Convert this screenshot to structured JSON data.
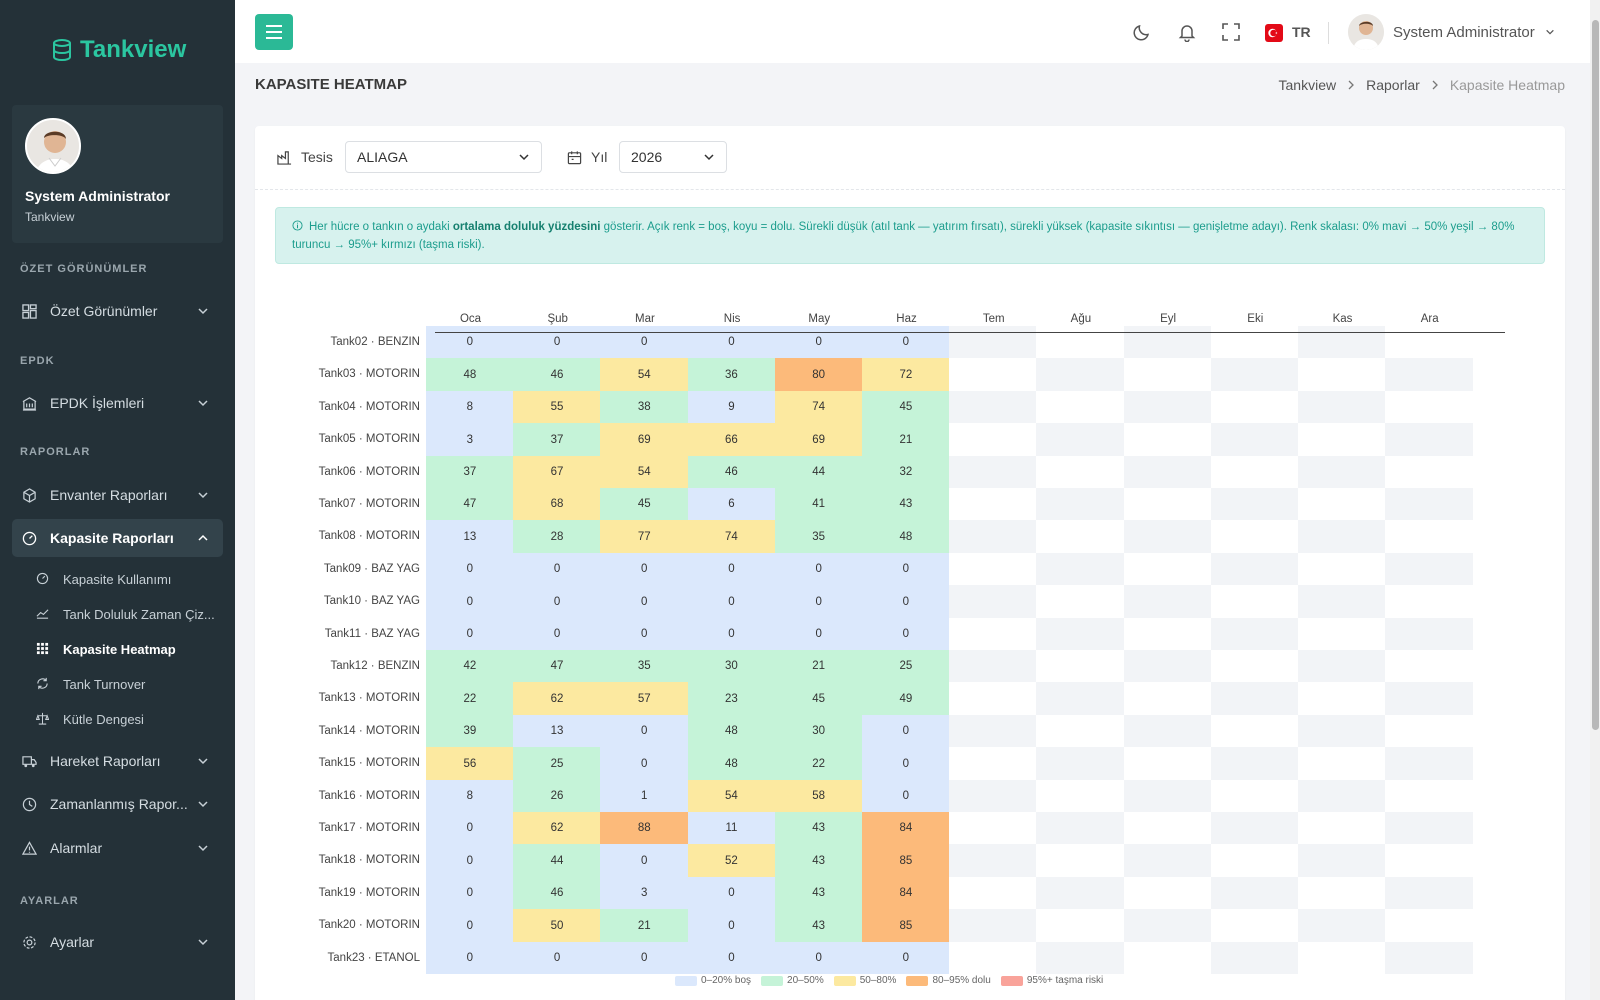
{
  "app": {
    "logo": "Tankview"
  },
  "profile": {
    "name": "System Administrator",
    "subtitle": "Tankview"
  },
  "sidebar": {
    "sections": [
      "ÖZET GÖRÜNÜMLER",
      "EPDK",
      "RAPORLAR",
      "AYARLAR"
    ],
    "items": [
      {
        "label": "Özet Görünümler",
        "icon": "grid-icon"
      },
      {
        "label": "EPDK İşlemleri",
        "icon": "building-icon"
      },
      {
        "label": "Envanter Raporları",
        "icon": "box-icon"
      },
      {
        "label": "Kapasite Raporları",
        "icon": "gauge-icon"
      },
      {
        "label": "Hareket Raporları",
        "icon": "truck-icon"
      },
      {
        "label": "Zamanlanmış Rapor...",
        "icon": "clock-icon"
      },
      {
        "label": "Alarmlar",
        "icon": "warning-icon"
      },
      {
        "label": "Ayarlar",
        "icon": "gear-icon"
      }
    ],
    "subitems": [
      {
        "label": "Kapasite Kullanımı",
        "icon": "gauge-icon"
      },
      {
        "label": "Tank Doluluk Zaman Çiz...",
        "icon": "area-chart-icon"
      },
      {
        "label": "Kapasite Heatmap",
        "icon": "dots-grid-icon"
      },
      {
        "label": "Tank Turnover",
        "icon": "refresh-icon"
      },
      {
        "label": "Kütle Dengesi",
        "icon": "scale-icon"
      }
    ]
  },
  "topbar": {
    "lang": "TR",
    "user": "System Administrator"
  },
  "page": {
    "title": "KAPASITE HEATMAP",
    "breadcrumb": [
      "Tankview",
      "Raporlar",
      "Kapasite Heatmap"
    ]
  },
  "filters": {
    "facility_label": "Tesis",
    "facility_value": "ALIAGA",
    "year_label": "Yıl",
    "year_value": "2026"
  },
  "info": {
    "prefix": "Her hücre o tankın o aydaki ",
    "bold": "ortalama doluluk yüzdesini",
    "suffix": " gösterir. Açık renk = boş, koyu = dolu. Sürekli düşük (atıl tank — yatırım fırsatı), sürekli yüksek (kapasite sıkıntısı — genişletme adayı). Renk skalası: 0% mavi → 50% yeşil → 80% turuncu → 95%+ kırmızı (taşma riski)."
  },
  "heatmap": {
    "months": [
      "Oca",
      "Şub",
      "Mar",
      "Nis",
      "May",
      "Haz",
      "Tem",
      "Ağu",
      "Eyl",
      "Eki",
      "Kas",
      "Ara"
    ],
    "colors": {
      "blue": "#dbe8fc",
      "green": "#c5f3d8",
      "yellow": "#fce9a0",
      "orange": "#fcba7a",
      "red": "#f9a39a",
      "empty_a": "#f2f4f7",
      "empty_b": "#ffffff"
    },
    "rows": [
      {
        "tank": "Tank02 · BENZIN",
        "values": [
          0,
          0,
          0,
          0,
          0,
          0
        ]
      },
      {
        "tank": "Tank03 · MOTORIN",
        "values": [
          48,
          46,
          54,
          36,
          80,
          72
        ]
      },
      {
        "tank": "Tank04 · MOTORIN",
        "values": [
          8,
          55,
          38,
          9,
          74,
          45
        ]
      },
      {
        "tank": "Tank05 · MOTORIN",
        "values": [
          3,
          37,
          69,
          66,
          69,
          21
        ]
      },
      {
        "tank": "Tank06 · MOTORIN",
        "values": [
          37,
          67,
          54,
          46,
          44,
          32
        ]
      },
      {
        "tank": "Tank07 · MOTORIN",
        "values": [
          47,
          68,
          45,
          6,
          41,
          43
        ]
      },
      {
        "tank": "Tank08 · MOTORIN",
        "values": [
          13,
          28,
          77,
          74,
          35,
          48
        ]
      },
      {
        "tank": "Tank09 · BAZ YAG",
        "values": [
          0,
          0,
          0,
          0,
          0,
          0
        ]
      },
      {
        "tank": "Tank10 · BAZ YAG",
        "values": [
          0,
          0,
          0,
          0,
          0,
          0
        ]
      },
      {
        "tank": "Tank11 · BAZ YAG",
        "values": [
          0,
          0,
          0,
          0,
          0,
          0
        ]
      },
      {
        "tank": "Tank12 · BENZIN",
        "values": [
          42,
          47,
          35,
          30,
          21,
          25
        ]
      },
      {
        "tank": "Tank13 · MOTORIN",
        "values": [
          22,
          62,
          57,
          23,
          45,
          49
        ]
      },
      {
        "tank": "Tank14 · MOTORIN",
        "values": [
          39,
          13,
          0,
          48,
          30,
          0
        ]
      },
      {
        "tank": "Tank15 · MOTORIN",
        "values": [
          56,
          25,
          0,
          48,
          22,
          0
        ]
      },
      {
        "tank": "Tank16 · MOTORIN",
        "values": [
          8,
          26,
          1,
          54,
          58,
          0
        ]
      },
      {
        "tank": "Tank17 · MOTORIN",
        "values": [
          0,
          62,
          88,
          11,
          43,
          84
        ]
      },
      {
        "tank": "Tank18 · MOTORIN",
        "values": [
          0,
          44,
          0,
          52,
          43,
          85
        ]
      },
      {
        "tank": "Tank19 · MOTORIN",
        "values": [
          0,
          46,
          3,
          0,
          43,
          84
        ]
      },
      {
        "tank": "Tank20 · MOTORIN",
        "values": [
          0,
          50,
          21,
          0,
          43,
          85
        ]
      },
      {
        "tank": "Tank23 · ETANOL",
        "values": [
          0,
          0,
          0,
          0,
          0,
          0
        ]
      }
    ],
    "legend": [
      "0–20% boş",
      "20–50%",
      "50–80%",
      "80–95% dolu",
      "95%+ taşma riski"
    ]
  }
}
